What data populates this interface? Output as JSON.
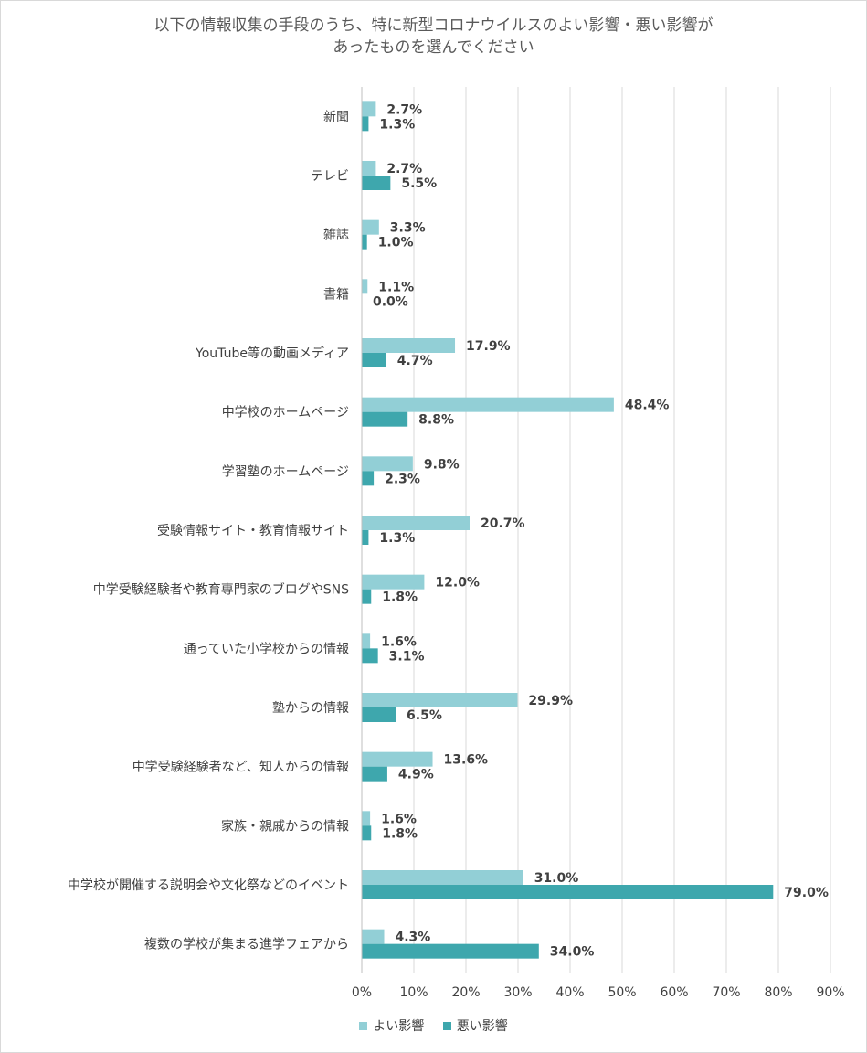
{
  "chart_data": {
    "type": "bar",
    "orientation": "horizontal",
    "title_lines": [
      "以下の情報収集の手段のうち、特に新型コロナウイルスのよい影響・悪い影響が",
      "あったものを選んでください"
    ],
    "categories": [
      "新聞",
      "テレビ",
      "雑誌",
      "書籍",
      "YouTube等の動画メディア",
      "中学校のホームページ",
      "学習塾のホームページ",
      "受験情報サイト・教育情報サイト",
      "中学受験経験者や教育専門家のブログやSNS",
      "通っていた小学校からの情報",
      "塾からの情報",
      "中学受験経験者など、知人からの情報",
      "家族・親戚からの情報",
      "中学校が開催する説明会や文化祭などのイベント",
      "複数の学校が集まる進学フェアから"
    ],
    "series": [
      {
        "name": "よい影響",
        "color": "#92cfd6",
        "values": [
          2.7,
          2.7,
          3.3,
          1.1,
          17.9,
          48.4,
          9.8,
          20.7,
          12.0,
          1.6,
          29.9,
          13.6,
          1.6,
          31.0,
          4.3
        ],
        "labels": [
          "2.7%",
          "2.7%",
          "3.3%",
          "1.1%",
          "17.9%",
          "48.4%",
          "9.8%",
          "20.7%",
          "12.0%",
          "1.6%",
          "29.9%",
          "13.6%",
          "1.6%",
          "31.0%",
          "4.3%"
        ]
      },
      {
        "name": "悪い影響",
        "color": "#3ea7ad",
        "values": [
          1.3,
          5.5,
          1.0,
          0.0,
          4.7,
          8.8,
          2.3,
          1.3,
          1.8,
          3.1,
          6.5,
          4.9,
          1.8,
          79.0,
          34.0
        ],
        "labels": [
          "1.3%",
          "5.5%",
          "1.0%",
          "0.0%",
          "4.7%",
          "8.8%",
          "2.3%",
          "1.3%",
          "1.8%",
          "3.1%",
          "6.5%",
          "4.9%",
          "1.8%",
          "79.0%",
          "34.0%"
        ]
      }
    ],
    "xlim": [
      0,
      90
    ],
    "xticks": [
      "0%",
      "10%",
      "20%",
      "30%",
      "40%",
      "50%",
      "60%",
      "70%",
      "80%",
      "90%"
    ],
    "grid": true,
    "legend": "bottom",
    "gridline_color": "#d9d9d9"
  }
}
